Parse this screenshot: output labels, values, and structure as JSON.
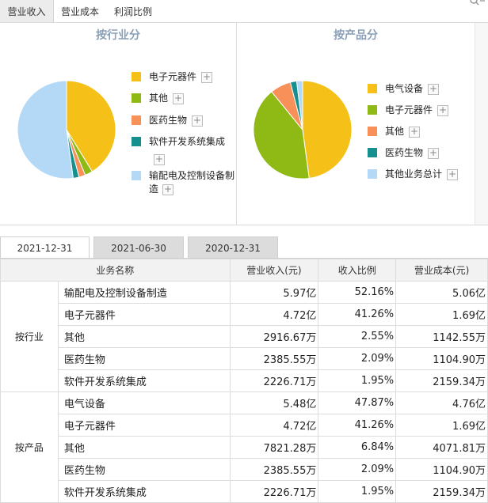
{
  "tabs": [
    "营业收入",
    "营业成本",
    "利润比例"
  ],
  "colors": {
    "yellow": "#f5c118",
    "green": "#8fba16",
    "orange": "#f79059",
    "teal": "#168f8f",
    "lightblue": "#b3d9f7"
  },
  "chart_data": [
    {
      "type": "pie",
      "title": "按行业分",
      "slices": [
        {
          "label": "电子元器件",
          "value": 41.26,
          "color": "#f5c118"
        },
        {
          "label": "其他",
          "value": 2.55,
          "color": "#8fba16"
        },
        {
          "label": "医药生物",
          "value": 2.09,
          "color": "#f79059"
        },
        {
          "label": "软件开发系统集成",
          "value": 1.95,
          "color": "#168f8f"
        },
        {
          "label": "输配电及控制设备制造",
          "value": 52.16,
          "color": "#b3d9f7"
        }
      ]
    },
    {
      "type": "pie",
      "title": "按产品分",
      "slices": [
        {
          "label": "电气设备",
          "value": 47.87,
          "color": "#f5c118"
        },
        {
          "label": "电子元器件",
          "value": 41.26,
          "color": "#8fba16"
        },
        {
          "label": "其他",
          "value": 6.84,
          "color": "#f79059"
        },
        {
          "label": "医药生物",
          "value": 2.09,
          "color": "#168f8f"
        },
        {
          "label": "其他业务总计",
          "value": 1.95,
          "color": "#b3d9f7"
        }
      ]
    }
  ],
  "left_legend": [
    "电子元器件",
    "其他",
    "医药生物",
    "软件开发系统集成",
    "输配电及控制设备制",
    "造"
  ],
  "right_legend": [
    "电气设备",
    "电子元器件",
    "其他",
    "医药生物",
    "其他业务总计"
  ],
  "date_tabs": [
    "2021-12-31",
    "2021-06-30",
    "2020-12-31"
  ],
  "table": {
    "headers": [
      "业务名称",
      "营业收入(元)",
      "收入比例",
      "营业成本(元)"
    ],
    "groups": [
      {
        "category": "按行业",
        "rows": [
          [
            "输配电及控制设备制造",
            "5.97亿",
            "52.16%",
            "5.06亿"
          ],
          [
            "电子元器件",
            "4.72亿",
            "41.26%",
            "1.69亿"
          ],
          [
            "其他",
            "2916.67万",
            "2.55%",
            "1142.55万"
          ],
          [
            "医药生物",
            "2385.55万",
            "2.09%",
            "1104.90万"
          ],
          [
            "软件开发系统集成",
            "2226.71万",
            "1.95%",
            "2159.34万"
          ]
        ]
      },
      {
        "category": "按产品",
        "rows": [
          [
            "电气设备",
            "5.48亿",
            "47.87%",
            "4.76亿"
          ],
          [
            "电子元器件",
            "4.72亿",
            "41.26%",
            "1.69亿"
          ],
          [
            "其他",
            "7821.28万",
            "6.84%",
            "4071.81万"
          ],
          [
            "医药生物",
            "2385.55万",
            "2.09%",
            "1104.90万"
          ],
          [
            "软件开发系统集成",
            "2226.71万",
            "1.95%",
            "2159.34万"
          ]
        ]
      }
    ]
  }
}
